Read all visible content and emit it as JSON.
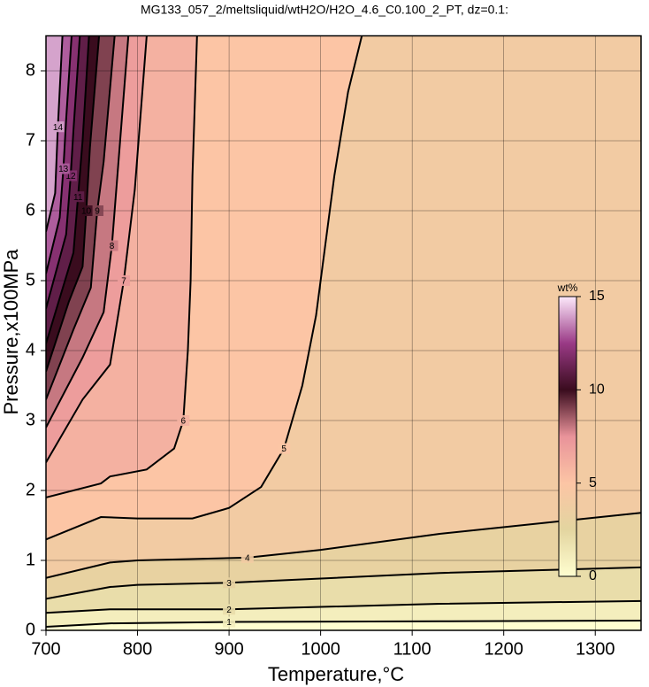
{
  "chart_data": {
    "type": "contour",
    "title": "MG133_057_2/meltsliquid/wtH2O/H2O_4.6_C0.100_2_PT, dz=0.1:",
    "x_label": "Temperature,°C",
    "y_label": "Pressure,x100MPa",
    "xlim": [
      700,
      1350
    ],
    "ylim": [
      0,
      8.5
    ],
    "xticks": [
      700,
      800,
      900,
      1000,
      1100,
      1200,
      1300
    ],
    "yticks": [
      0,
      1,
      2,
      3,
      4,
      5,
      6,
      7,
      8
    ],
    "grid": true,
    "colorbar_label": "wt%",
    "clim": [
      0,
      15
    ],
    "cticks": [
      0,
      5,
      10,
      15
    ],
    "colormap": [
      "#fffed0",
      "#e3d5a0",
      "#fcc5a5",
      "#e9939a",
      "#3a0c1e",
      "#9a3a86",
      "#fde9fb"
    ],
    "contours": [
      {
        "level": 1,
        "T": [
          700,
          770,
          900,
          1130,
          1350
        ],
        "P": [
          0.05,
          0.1,
          0.12,
          0.13,
          0.14
        ]
      },
      {
        "level": 2,
        "T": [
          700,
          770,
          900,
          1130,
          1350
        ],
        "P": [
          0.25,
          0.3,
          0.3,
          0.38,
          0.42
        ]
      },
      {
        "level": 3,
        "T": [
          700,
          770,
          800,
          900,
          1130,
          1350
        ],
        "P": [
          0.45,
          0.62,
          0.65,
          0.68,
          0.82,
          0.9
        ]
      },
      {
        "level": 4,
        "T": [
          700,
          770,
          800,
          920,
          1000,
          1130,
          1350
        ],
        "P": [
          0.75,
          0.97,
          1.0,
          1.04,
          1.15,
          1.38,
          1.68
        ]
      },
      {
        "level": 5,
        "T": [
          700,
          760,
          800,
          860,
          900,
          935,
          960,
          980,
          995,
          1005,
          1015,
          1030,
          1045
        ],
        "P": [
          1.3,
          1.62,
          1.6,
          1.6,
          1.75,
          2.05,
          2.6,
          3.5,
          4.5,
          5.5,
          6.5,
          7.7,
          8.5
        ]
      },
      {
        "level": 6,
        "T": [
          700,
          760,
          770,
          810,
          840,
          850,
          855,
          858,
          860,
          865
        ],
        "P": [
          1.9,
          2.1,
          2.2,
          2.3,
          2.6,
          3.0,
          4,
          5,
          6.5,
          8.5
        ]
      },
      {
        "level": 7,
        "T": [
          700,
          740,
          770,
          785,
          797,
          810
        ],
        "P": [
          2.4,
          3.3,
          3.8,
          5,
          6.3,
          8.5
        ]
      },
      {
        "level": 8,
        "T": [
          700,
          740,
          763,
          772,
          778,
          790
        ],
        "P": [
          2.9,
          3.9,
          4.55,
          5.5,
          6.5,
          8.5
        ]
      },
      {
        "level": 9,
        "T": [
          700,
          730,
          749,
          756,
          763,
          775
        ],
        "P": [
          3.3,
          4.3,
          4.9,
          6,
          6.7,
          8.5
        ]
      },
      {
        "level": 10,
        "T": [
          700,
          725,
          740,
          744,
          748,
          758
        ],
        "P": [
          3.7,
          4.7,
          5.2,
          6,
          6.9,
          8.5
        ]
      },
      {
        "level": 11,
        "T": [
          700,
          730,
          735,
          740,
          747
        ],
        "P": [
          4.1,
          5.4,
          6.2,
          7,
          8.5
        ]
      },
      {
        "level": 12,
        "T": [
          700,
          722,
          727,
          730,
          737
        ],
        "P": [
          4.6,
          5.66,
          6.5,
          7.15,
          8.5
        ]
      },
      {
        "level": 13,
        "T": [
          700,
          715,
          719,
          722,
          728
        ],
        "P": [
          5.1,
          5.9,
          6.6,
          7.3,
          8.5
        ]
      },
      {
        "level": 14,
        "T": [
          700,
          710,
          713,
          718
        ],
        "P": [
          5.7,
          6.25,
          7.2,
          8.5
        ]
      }
    ]
  }
}
